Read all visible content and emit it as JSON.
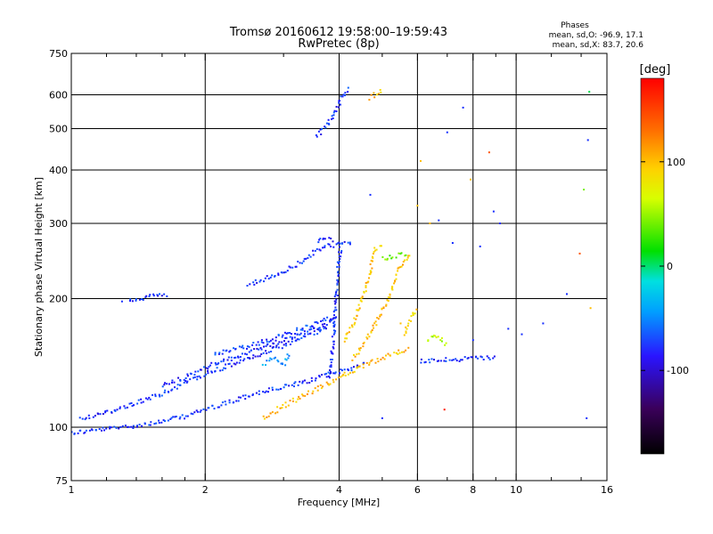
{
  "chart_data": {
    "type": "scatter",
    "title": "Tromsø 20160612 19:58:00–19:59:43",
    "subtitle": "RwPretec (8p)",
    "stats_header": "Phases",
    "stats_o": "mean, sd,O: -96.9, 17.1",
    "stats_x": "mean, sd,X: 83.7, 20.6",
    "xlabel": "Frequency [MHz]",
    "ylabel": "Stationary phase Virtual Height [km]",
    "xscale": "log",
    "yscale": "log",
    "xlim": [
      1,
      16
    ],
    "ylim": [
      75,
      750
    ],
    "xticks": [
      1,
      2,
      4,
      6,
      8,
      10,
      16
    ],
    "xtick_labels": [
      "1",
      "2",
      "4",
      "6",
      "8",
      "10",
      "16"
    ],
    "xminor_ticks": [
      1.2,
      1.4,
      1.6,
      1.8,
      3,
      5,
      7,
      9,
      12,
      14
    ],
    "yticks": [
      75,
      100,
      200,
      300,
      400,
      500,
      600,
      750
    ],
    "ytick_labels": [
      "75",
      "100",
      "200",
      "300",
      "400",
      "500",
      "600",
      "750"
    ],
    "x_gridlines": [
      2,
      4,
      6,
      8,
      10
    ],
    "y_gridlines": [
      100,
      200,
      300,
      400,
      500,
      600
    ],
    "colorbar": {
      "label": "[deg]",
      "range": [
        -180,
        180
      ],
      "ticks": [
        -100,
        0,
        100
      ],
      "tick_labels": [
        "-100",
        "0",
        "100"
      ]
    },
    "grid": true,
    "series": [
      {
        "traces": [
          {
            "phase": -100,
            "pts": [
              [
                1.0,
                97
              ],
              [
                1.2,
                99
              ],
              [
                1.4,
                101
              ],
              [
                1.6,
                103
              ],
              [
                1.8,
                106
              ],
              [
                2.0,
                110
              ],
              [
                2.3,
                115
              ],
              [
                2.6,
                120
              ],
              [
                3.0,
                124
              ],
              [
                3.4,
                128
              ],
              [
                3.8,
                133
              ],
              [
                4.2,
                137
              ],
              [
                4.6,
                141
              ]
            ]
          },
          {
            "phase": -100,
            "pts": [
              [
                1.05,
                105
              ],
              [
                1.2,
                108
              ],
              [
                1.4,
                114
              ],
              [
                1.6,
                120
              ],
              [
                1.8,
                127
              ],
              [
                2.0,
                133
              ],
              [
                2.3,
                140
              ],
              [
                2.6,
                147
              ],
              [
                3.0,
                155
              ],
              [
                3.4,
                164
              ],
              [
                3.8,
                172
              ]
            ]
          },
          {
            "phase": -100,
            "pts": [
              [
                1.6,
                125
              ],
              [
                1.8,
                131
              ],
              [
                2.0,
                138
              ],
              [
                2.3,
                145
              ],
              [
                2.6,
                152
              ],
              [
                3.0,
                160
              ],
              [
                3.4,
                168
              ],
              [
                3.8,
                176
              ],
              [
                4.0,
                180
              ]
            ]
          },
          {
            "phase": -95,
            "pts": [
              [
                2.1,
                148
              ],
              [
                2.4,
                153
              ],
              [
                2.8,
                160
              ],
              [
                3.2,
                168
              ],
              [
                3.6,
                176
              ],
              [
                4.0,
                183
              ]
            ]
          },
          {
            "phase": -100,
            "pts": [
              [
                2.5,
                215
              ],
              [
                2.8,
                225
              ],
              [
                3.1,
                235
              ],
              [
                3.4,
                250
              ],
              [
                3.7,
                265
              ],
              [
                4.0,
                268
              ],
              [
                4.3,
                270
              ]
            ]
          },
          {
            "phase": -100,
            "pts": [
              [
                3.6,
                270
              ],
              [
                3.7,
                278
              ],
              [
                3.9,
                274
              ]
            ]
          },
          {
            "phase": -100,
            "pts": [
              [
                3.55,
                480
              ],
              [
                3.7,
                500
              ],
              [
                3.85,
                530
              ],
              [
                3.95,
                560
              ],
              [
                4.05,
                590
              ],
              [
                4.15,
                610
              ],
              [
                4.25,
                625
              ]
            ]
          },
          {
            "phase": -100,
            "pts": [
              [
                3.8,
                130
              ],
              [
                3.9,
                170
              ],
              [
                3.95,
                210
              ],
              [
                4.0,
                250
              ],
              [
                4.05,
                270
              ]
            ]
          },
          {
            "phase": -60,
            "pts": [
              [
                2.7,
                140
              ],
              [
                2.85,
                145
              ],
              [
                3.0,
                140
              ],
              [
                3.1,
                150
              ]
            ]
          },
          {
            "phase": -100,
            "pts": [
              [
                6.1,
                143
              ],
              [
                6.5,
                143
              ],
              [
                7.0,
                144
              ],
              [
                7.5,
                144
              ],
              [
                8.0,
                145
              ],
              [
                8.5,
                145
              ],
              [
                9.0,
                145
              ]
            ]
          },
          {
            "phase": -100,
            "pts": [
              [
                1.35,
                199
              ],
              [
                1.45,
                201
              ],
              [
                1.65,
                205
              ]
            ]
          }
        ]
      },
      {
        "traces": [
          {
            "phase": 110,
            "pts": [
              [
                2.7,
                105
              ],
              [
                3.0,
                112
              ],
              [
                3.4,
                120
              ],
              [
                3.8,
                127
              ],
              [
                4.2,
                134
              ],
              [
                4.6,
                140
              ],
              [
                5.0,
                145
              ],
              [
                5.4,
                150
              ],
              [
                5.8,
                153
              ]
            ]
          },
          {
            "phase": 110,
            "pts": [
              [
                4.3,
                145
              ],
              [
                4.6,
                160
              ],
              [
                4.9,
                180
              ],
              [
                5.2,
                205
              ],
              [
                5.5,
                240
              ],
              [
                5.8,
                255
              ]
            ]
          },
          {
            "phase": 105,
            "pts": [
              [
                4.1,
                160
              ],
              [
                4.3,
                175
              ],
              [
                4.5,
                200
              ],
              [
                4.7,
                230
              ],
              [
                4.8,
                260
              ],
              [
                5.0,
                268
              ]
            ]
          },
          {
            "phase": 110,
            "pts": [
              [
                4.7,
                590
              ],
              [
                4.9,
                610
              ],
              [
                5.0,
                620
              ]
            ]
          },
          {
            "phase": 40,
            "pts": [
              [
                5.0,
                248
              ],
              [
                5.3,
                252
              ],
              [
                5.7,
                255
              ]
            ]
          },
          {
            "phase": 55,
            "pts": [
              [
                6.3,
                160
              ],
              [
                6.6,
                165
              ],
              [
                7.0,
                155
              ]
            ]
          },
          {
            "phase": 100,
            "pts": [
              [
                5.6,
                165
              ],
              [
                5.8,
                180
              ],
              [
                6.0,
                190
              ]
            ]
          }
        ]
      }
    ],
    "outliers": [
      [
        6.0,
        330,
        110
      ],
      [
        6.1,
        420,
        110
      ],
      [
        6.4,
        300,
        110
      ],
      [
        6.7,
        305,
        -100
      ],
      [
        7.0,
        490,
        -100
      ],
      [
        7.6,
        560,
        -100
      ],
      [
        7.9,
        380,
        110
      ],
      [
        8.7,
        440,
        150
      ],
      [
        8.9,
        320,
        -100
      ],
      [
        9.2,
        300,
        -100
      ],
      [
        7.2,
        270,
        -100
      ],
      [
        8.3,
        265,
        -100
      ],
      [
        11.5,
        175,
        -100
      ],
      [
        13.0,
        205,
        -100
      ],
      [
        14.5,
        470,
        -100
      ],
      [
        14.6,
        610,
        0
      ],
      [
        14.2,
        360,
        40
      ],
      [
        13.9,
        255,
        150
      ],
      [
        14.7,
        190,
        110
      ],
      [
        14.4,
        105,
        -100
      ],
      [
        6.9,
        110,
        170
      ],
      [
        5.0,
        105,
        -100
      ],
      [
        9.6,
        170,
        -100
      ],
      [
        10.3,
        165,
        -100
      ],
      [
        8.0,
        160,
        -100
      ],
      [
        1.3,
        197,
        -100
      ],
      [
        4.7,
        350,
        -100
      ],
      [
        5.5,
        175,
        110
      ]
    ]
  }
}
